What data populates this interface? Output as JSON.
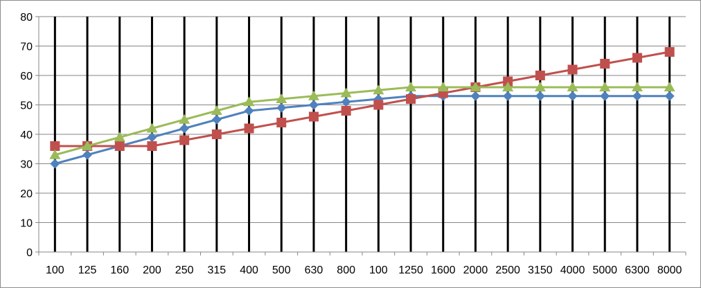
{
  "chart_data": {
    "type": "line",
    "title": "",
    "xlabel": "",
    "ylabel": "",
    "categories": [
      "100",
      "125",
      "160",
      "200",
      "250",
      "315",
      "400",
      "500",
      "630",
      "800",
      "100",
      "1250",
      "1600",
      "2000",
      "2500",
      "3150",
      "4000",
      "5000",
      "6300",
      "8000"
    ],
    "ylim": [
      0,
      80
    ],
    "yticks": [
      0,
      10,
      20,
      30,
      40,
      50,
      60,
      70,
      80
    ],
    "grid": {
      "horizontal": true,
      "vertical": true
    },
    "legend": "none",
    "series": [
      {
        "color": "#4f81bd",
        "marker": "diamond",
        "values": [
          30,
          33,
          36,
          39,
          42,
          45,
          48,
          49,
          50,
          51,
          52,
          53,
          53,
          53,
          53,
          53,
          53,
          53,
          53,
          53
        ]
      },
      {
        "color": "#c0504d",
        "marker": "square",
        "values": [
          36,
          36,
          36,
          36,
          38,
          40,
          42,
          44,
          46,
          48,
          50,
          52,
          54,
          56,
          58,
          60,
          62,
          64,
          66,
          68
        ]
      },
      {
        "color": "#9bbb59",
        "marker": "triangle",
        "values": [
          33,
          36,
          39,
          42,
          45,
          48,
          51,
          52,
          53,
          54,
          55,
          56,
          56,
          56,
          56,
          56,
          56,
          56,
          56,
          56
        ]
      }
    ]
  }
}
